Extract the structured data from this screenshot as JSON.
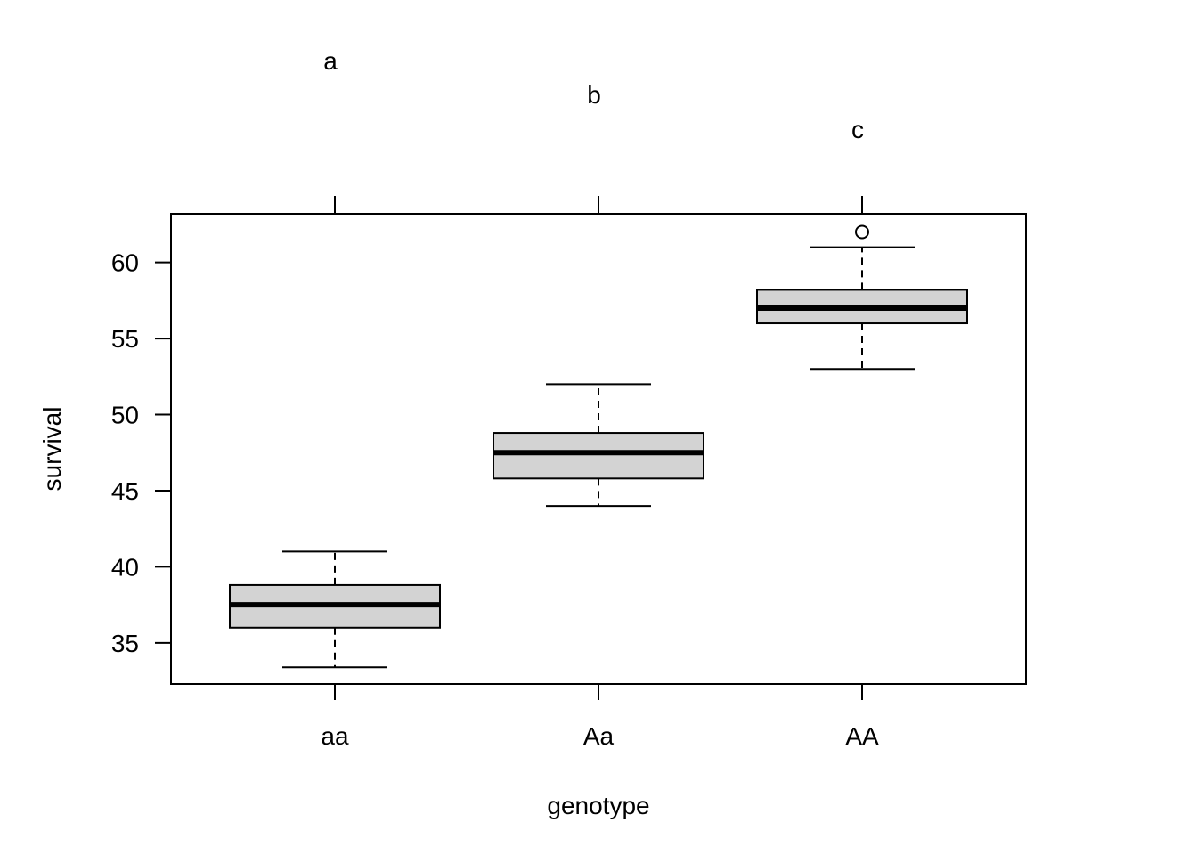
{
  "chart_data": {
    "type": "boxplot",
    "title": "",
    "xlabel": "genotype",
    "ylabel": "survival",
    "categories": [
      "aa",
      "Aa",
      "AA"
    ],
    "group_letters": [
      "a",
      "b",
      "c"
    ],
    "ylim": [
      32.3,
      63.2
    ],
    "yticks": [
      35,
      40,
      45,
      50,
      55,
      60
    ],
    "ytick_labels": [
      "35",
      "40",
      "45",
      "50",
      "55",
      "60"
    ],
    "boxes": [
      {
        "category": "aa",
        "whisker_low": 33.4,
        "q1": 36.0,
        "median": 37.5,
        "q3": 38.8,
        "whisker_high": 41.0,
        "outliers": []
      },
      {
        "category": "Aa",
        "whisker_low": 44.0,
        "q1": 45.8,
        "median": 47.5,
        "q3": 48.8,
        "whisker_high": 52.0,
        "outliers": []
      },
      {
        "category": "AA",
        "whisker_low": 53.0,
        "q1": 56.0,
        "median": 57.0,
        "q3": 58.2,
        "whisker_high": 61.0,
        "outliers": [
          62.0
        ]
      }
    ],
    "grid": false,
    "box_fill": "#d3d3d3",
    "line_color": "#000000"
  }
}
